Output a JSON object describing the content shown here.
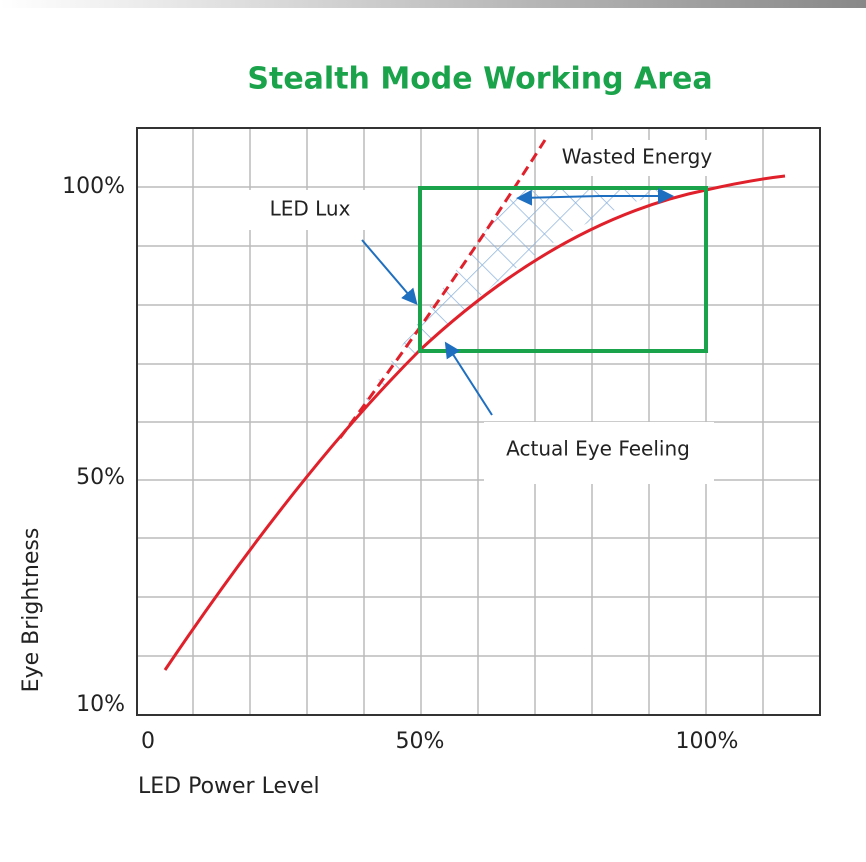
{
  "title": "Stealth Mode Working Area",
  "y_axis": {
    "label": "Eye Brightness",
    "ticks": [
      "100%",
      "50%",
      "10%"
    ]
  },
  "x_axis": {
    "label": "LED Power Level",
    "ticks": [
      "0",
      "50%",
      "100%"
    ]
  },
  "annotations": {
    "led_lux": "LED Lux",
    "wasted_energy": "Wasted Energy",
    "actual_eye_feeling": "Actual Eye Feeling"
  }
}
